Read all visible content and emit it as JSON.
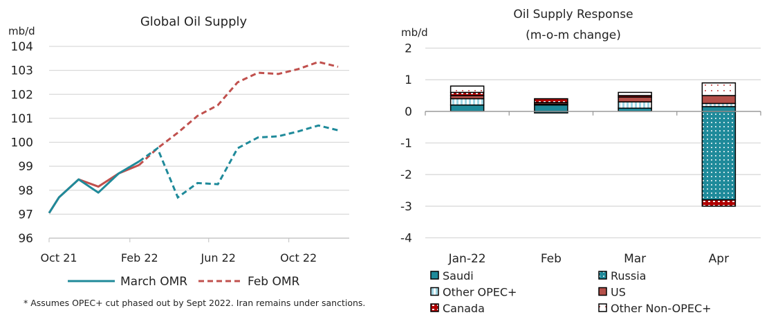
{
  "colors": {
    "teal": "#1f8a9a",
    "red": "#c0504d",
    "light_blue": "#9fd6e4",
    "us_red": "#b5504a",
    "canada_red": "#b00000",
    "grid": "#d9d9d9"
  },
  "footnote": "* Assumes OPEC+ cut phased out by Sept 2022. Iran remains under sanctions.",
  "chart_data": [
    {
      "type": "line",
      "title": "Global Oil Supply",
      "ylabel": "mb/d",
      "ylim": [
        96,
        104
      ],
      "yticks": [
        "104",
        "103",
        "102",
        "101",
        "100",
        "99",
        "98",
        "97",
        "96"
      ],
      "xticks": [
        {
          "label": "Oct 21",
          "date": "2021-10-01"
        },
        {
          "label": "Feb 22",
          "date": "2022-02-01"
        },
        {
          "label": "Jun 22",
          "date": "2022-06-01"
        },
        {
          "label": "Oct 22",
          "date": "2022-10-01"
        }
      ],
      "xlim": [
        "2021-10-01",
        "2023-01-01"
      ],
      "grid": true,
      "legend": "bottom",
      "forecast_start": "2022-02-15",
      "x": [
        "2021-10-01",
        "2021-10-16",
        "2021-11-15",
        "2021-12-15",
        "2022-01-15",
        "2022-02-15",
        "2022-03-15",
        "2022-04-15",
        "2022-05-15",
        "2022-06-15",
        "2022-07-15",
        "2022-08-15",
        "2022-09-15",
        "2022-10-15",
        "2022-11-15",
        "2022-12-15"
      ],
      "series": [
        {
          "name": "March OMR",
          "color": "#1f8a9a",
          "style": "solid; dashed for forecast",
          "values": [
            97.05,
            97.7,
            98.45,
            97.9,
            98.7,
            99.2,
            99.75,
            97.7,
            98.3,
            98.25,
            99.75,
            100.2,
            100.25,
            100.45,
            100.7,
            100.5
          ]
        },
        {
          "name": "Feb OMR",
          "color": "#c0504d",
          "style": "dashed",
          "values": [
            97.05,
            97.7,
            98.45,
            98.15,
            98.7,
            99.05,
            99.75,
            100.4,
            101.1,
            101.55,
            102.5,
            102.9,
            102.85,
            103.05,
            103.35,
            103.15
          ]
        }
      ]
    },
    {
      "type": "bar",
      "stacked": true,
      "title": "Oil Supply Response",
      "subtitle": "(m-o-m change)",
      "ylabel": "mb/d",
      "ylim": [
        -4,
        2
      ],
      "yticks": [
        "2",
        "1",
        "0",
        "-1",
        "-2",
        "-3",
        "-4"
      ],
      "categories": [
        "Jan-22",
        "Feb",
        "Mar",
        "Apr"
      ],
      "grid": true,
      "legend": "bottom",
      "series": [
        {
          "name": "Saudi",
          "pattern": "solid-teal",
          "values": [
            0.2,
            0.2,
            0.1,
            0.15
          ]
        },
        {
          "name": "Russia",
          "pattern": "teal-dots",
          "values": [
            0,
            -0.05,
            0,
            -2.8
          ]
        },
        {
          "name": "Other OPEC+",
          "pattern": "light-blue-stripes",
          "values": [
            0.2,
            0.03,
            0.2,
            0.1
          ]
        },
        {
          "name": "US",
          "pattern": "solid-red",
          "values": [
            0.1,
            0.05,
            0.15,
            0.25
          ]
        },
        {
          "name": "Canada",
          "pattern": "dark-red-dots",
          "values": [
            0.1,
            0.12,
            0.05,
            -0.2
          ]
        },
        {
          "name": "Other Non-OPEC+",
          "pattern": "white-red-dots",
          "values": [
            0.2,
            0,
            0.1,
            0.4
          ]
        }
      ]
    }
  ]
}
